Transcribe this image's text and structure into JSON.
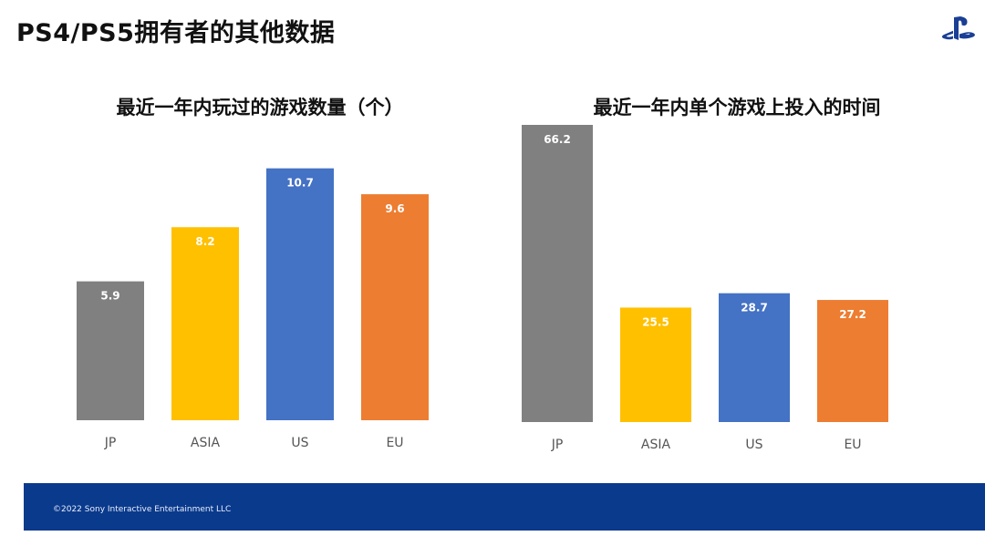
{
  "header": {
    "title": "PS4/PS5拥有者的其他数据",
    "logo_icon": "playstation-logo-icon",
    "logo_color": "#1a3f95"
  },
  "footer": {
    "copyright": "©2022 Sony Interactive Entertainment LLC",
    "bg_color": "#0a3a8c"
  },
  "chart_data": [
    {
      "type": "bar",
      "title": "最近一年内玩过的游戏数量（个）",
      "categories": [
        "JP",
        "ASIA",
        "US",
        "EU"
      ],
      "values": [
        5.9,
        8.2,
        10.7,
        9.6
      ],
      "value_labels": [
        "5.9",
        "8.2",
        "10.7",
        "9.6"
      ],
      "colors": [
        "#808080",
        "#ffc000",
        "#4472c4",
        "#ed7d31"
      ],
      "ylim": [
        0,
        11.5
      ],
      "grid": false,
      "legend": "none"
    },
    {
      "type": "bar",
      "title": "最近一年内单个游戏上投入的时间",
      "categories": [
        "JP",
        "ASIA",
        "US",
        "EU"
      ],
      "values": [
        66.2,
        25.5,
        28.7,
        27.2
      ],
      "value_labels": [
        "66.2",
        "25.5",
        "28.7",
        "27.2"
      ],
      "colors": [
        "#808080",
        "#ffc000",
        "#4472c4",
        "#ed7d31"
      ],
      "ylim": [
        0,
        66.2
      ],
      "grid": false,
      "legend": "none"
    }
  ]
}
